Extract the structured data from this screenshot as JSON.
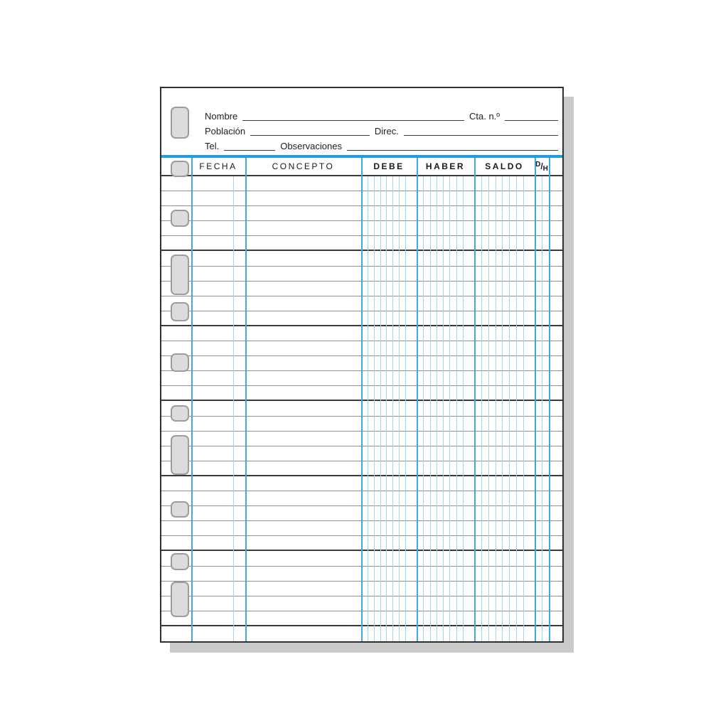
{
  "header": {
    "fields": {
      "nombre": "Nombre",
      "cta": "Cta. n.º",
      "poblacion": "Población",
      "direc": "Direc.",
      "tel": "Tel.",
      "observaciones": "Observaciones"
    }
  },
  "table": {
    "columns": [
      {
        "label": "FECHA"
      },
      {
        "label": "CONCEPTO"
      },
      {
        "label": "DEBE"
      },
      {
        "label": "HABER"
      },
      {
        "label": "SALDO"
      },
      {
        "label": "D/H"
      }
    ],
    "dh": {
      "d": "D",
      "sep": "/",
      "h": "H"
    }
  },
  "colors": {
    "accent_blue": "#1f9fd8",
    "grid_blue_medium": "#3fa9dc",
    "grid_blue_light": "#9fd4ec",
    "line_dark": "#3a3a3a",
    "line_row": "#8f8f8f",
    "hole_fill": "#dcdcdc",
    "hole_border": "#9c9c9c",
    "shadow": "#cacaca",
    "paper": "#ffffff",
    "text": "#1d1d1d"
  }
}
